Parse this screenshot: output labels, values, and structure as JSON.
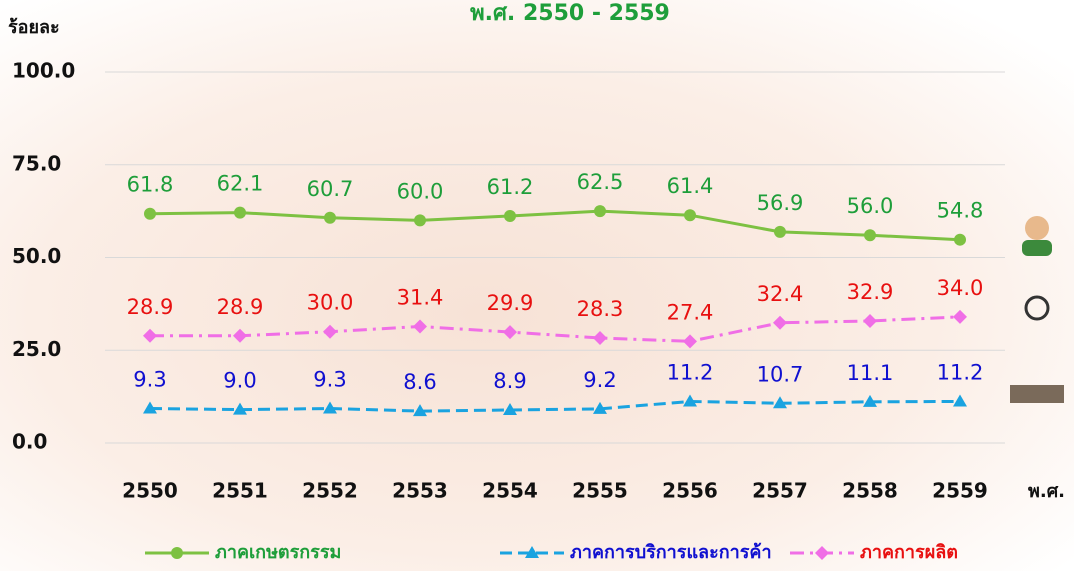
{
  "chart_data": {
    "type": "line",
    "title": "พ.ศ. 2550 - 2559",
    "y_label": "ร้อยละ",
    "x_label": "พ.ศ.",
    "categories": [
      "2550",
      "2551",
      "2552",
      "2553",
      "2554",
      "2555",
      "2556",
      "2557",
      "2558",
      "2559"
    ],
    "ylim": [
      0,
      100
    ],
    "yticks": [
      {
        "value": 0,
        "label": "0.0"
      },
      {
        "value": 25,
        "label": "25.0"
      },
      {
        "value": 50,
        "label": "50.0"
      },
      {
        "value": 75,
        "label": "75.0"
      },
      {
        "value": 100,
        "label": "100.0"
      }
    ],
    "grid": true,
    "series": [
      {
        "name": "ภาคเกษตรกรรม",
        "color": "#7dc142",
        "label_color": "#1e9e3a",
        "marker": "circle",
        "dash": "",
        "values": [
          61.8,
          62.1,
          60.7,
          60.0,
          61.2,
          62.5,
          61.4,
          56.9,
          56.0,
          54.8
        ],
        "value_labels": [
          "61.8",
          "62.1",
          "60.7",
          "60.0",
          "61.2",
          "62.5",
          "61.4",
          "56.9",
          "56.0",
          "54.8"
        ]
      },
      {
        "name": "ภาคการบริการและการค้า",
        "color": "#1aa3e0",
        "label_color": "#1010d0",
        "marker": "triangle",
        "dash": "12 6",
        "values": [
          9.3,
          9.0,
          9.3,
          8.6,
          8.9,
          9.2,
          11.2,
          10.7,
          11.1,
          11.2
        ],
        "value_labels": [
          "9.3",
          "9.0",
          "9.3",
          "8.6",
          "8.9",
          "9.2",
          "11.2",
          "10.7",
          "11.1",
          "11.2"
        ]
      },
      {
        "name": "ภาคการผลิต",
        "color": "#f06ee6",
        "label_color": "#e81010",
        "marker": "diamond",
        "dash": "14 6 3 6",
        "values": [
          28.9,
          28.9,
          30.0,
          31.4,
          29.9,
          28.3,
          27.4,
          32.4,
          32.9,
          34.0
        ],
        "value_labels": [
          "28.9",
          "28.9",
          "30.0",
          "31.4",
          "29.9",
          "28.3",
          "27.4",
          "32.4",
          "32.9",
          "34.0"
        ]
      }
    ]
  }
}
